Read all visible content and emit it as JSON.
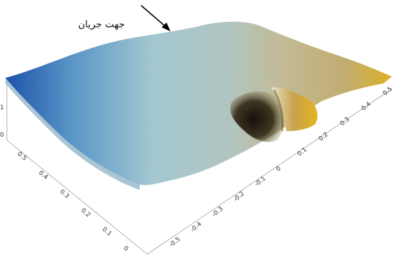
{
  "annotation": {
    "label": "جهت جریان"
  },
  "axes": {
    "x_ticks": [
      "-0.5",
      "-0.4",
      "-0.3",
      "-0.2",
      "-0.1",
      "0",
      "0.1",
      "0.2",
      "0.3",
      "0.4",
      "0.5"
    ],
    "y_ticks": [
      "0",
      "0.1",
      "0.2",
      "0.3",
      "0.4",
      "0.5"
    ],
    "z_ticks": [
      "1",
      "0"
    ]
  },
  "colors": {
    "surface_left": "#2a63b8",
    "surface_mid": "#a9cbd3",
    "surface_right": "#c9bb8a",
    "scour_shadow": "#3a3320",
    "deposit": "#e0b020"
  }
}
